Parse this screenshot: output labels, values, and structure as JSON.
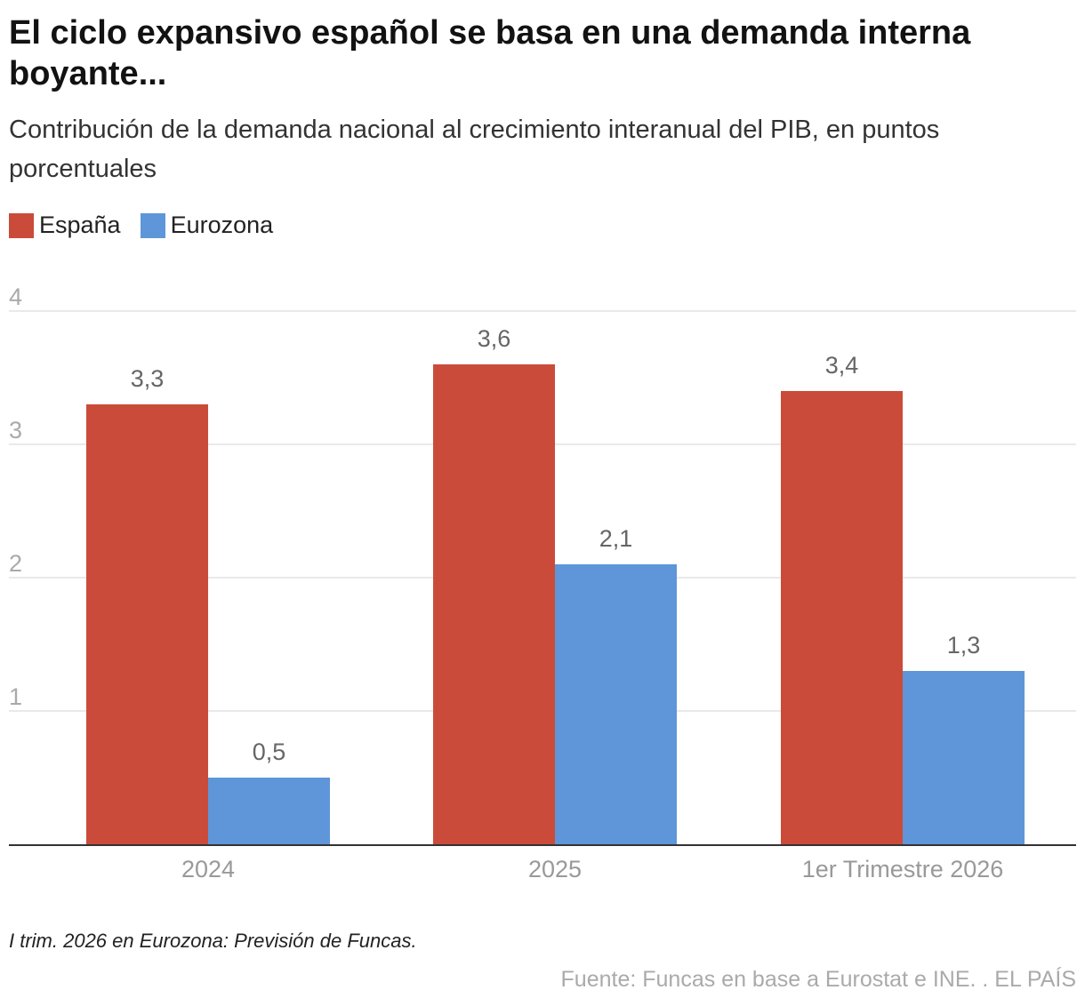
{
  "header": {
    "title": "El ciclo expansivo español se basa en una demanda interna boyante...",
    "subtitle": "Contribución de la demanda nacional al crecimiento interanual del PIB, en puntos porcentuales"
  },
  "legend": [
    {
      "name": "España",
      "color": "#cb4b3a"
    },
    {
      "name": "Eurozona",
      "color": "#5e96d9"
    }
  ],
  "chart_data": {
    "type": "bar",
    "categories": [
      "2024",
      "2025",
      "1er Trimestre 2026"
    ],
    "series": [
      {
        "name": "España",
        "color": "#cb4b3a",
        "values": [
          3.3,
          3.6,
          3.4
        ],
        "labels": [
          "3,3",
          "3,6",
          "3,4"
        ]
      },
      {
        "name": "Eurozona",
        "color": "#5e96d9",
        "values": [
          0.5,
          2.1,
          1.3
        ],
        "labels": [
          "0,5",
          "2,1",
          "1,3"
        ]
      }
    ],
    "y_ticks": [
      1,
      2,
      3,
      4
    ],
    "ylim": [
      0,
      4
    ],
    "grid": true,
    "legend_position": "top-left"
  },
  "footer": {
    "note": "I trim. 2026 en Eurozona: Previsión de Funcas.",
    "source": "Fuente: Funcas en base a Eurostat e INE. . EL PAÍS"
  }
}
